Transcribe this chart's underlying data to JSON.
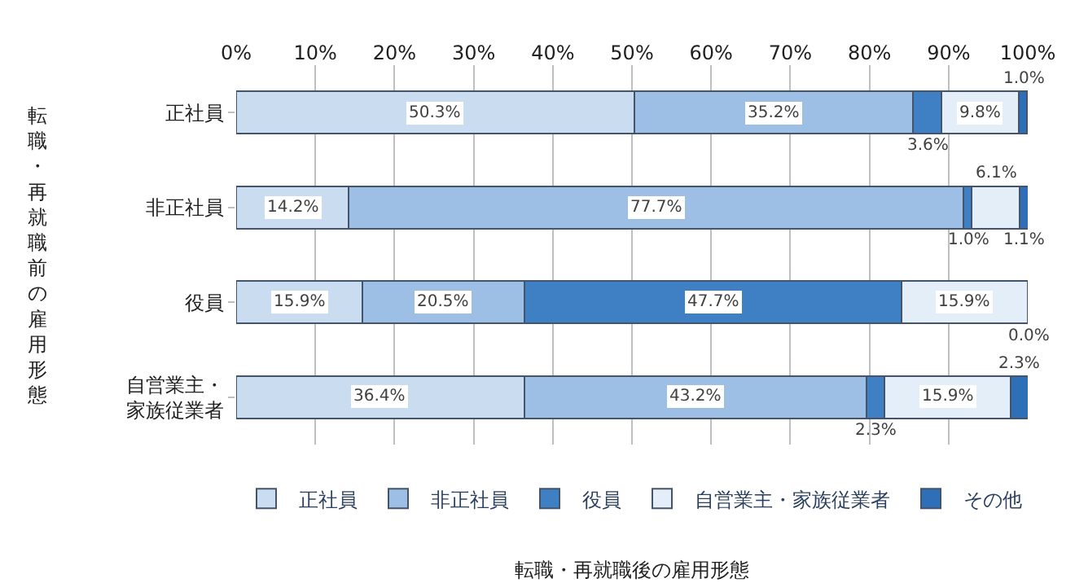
{
  "chart_data": {
    "type": "bar",
    "orientation": "horizontal",
    "stacked": true,
    "ylabel": "転職・再就職前の雇用形態",
    "annotations": [
      "転職・再就職後の雇用形態"
    ],
    "categories": [
      "正社員",
      "非正社員",
      "役員",
      "自営業主・家族従業者"
    ],
    "series": [
      {
        "name": "正社員",
        "color": "#c9dcf0",
        "values": [
          50.3,
          14.2,
          15.9,
          36.4
        ],
        "value_labels": [
          "50.3%",
          "14.2%",
          "15.9%",
          "36.4%"
        ]
      },
      {
        "name": "非正社員",
        "color": "#9dbfe6",
        "values": [
          35.2,
          77.7,
          20.5,
          43.2
        ],
        "value_labels": [
          "35.2%",
          "77.7%",
          "20.5%",
          "43.2%"
        ]
      },
      {
        "name": "役員",
        "color": "#3f7fc4",
        "values": [
          3.6,
          1.0,
          47.7,
          2.3
        ],
        "value_labels": [
          "3.6%",
          "1.0%",
          "47.7%",
          "2.3%"
        ]
      },
      {
        "name": "自営業主・家族従業者",
        "color": "#e4eef8",
        "values": [
          9.8,
          6.1,
          15.9,
          15.9
        ],
        "value_labels": [
          "9.8%",
          "6.1%",
          "15.9%",
          "15.9%"
        ]
      },
      {
        "name": "その他",
        "color": "#2f6fb8",
        "values": [
          1.0,
          1.1,
          0.0,
          2.3
        ],
        "value_labels": [
          "1.0%",
          "1.1%",
          "0.0%",
          "2.3%"
        ]
      }
    ],
    "xlim": [
      0,
      100
    ],
    "xticks": [
      {
        "value": 0,
        "label": "0%"
      },
      {
        "value": 10,
        "label": "10%"
      },
      {
        "value": 20,
        "label": "20%"
      },
      {
        "value": 30,
        "label": "30%"
      },
      {
        "value": 40,
        "label": "40%"
      },
      {
        "value": 50,
        "label": "50%"
      },
      {
        "value": 60,
        "label": "60%"
      },
      {
        "value": 70,
        "label": "70%"
      },
      {
        "value": 80,
        "label": "80%"
      },
      {
        "value": 90,
        "label": "90%"
      },
      {
        "value": 100,
        "label": "100%"
      }
    ],
    "grid": "x",
    "legend": "bottom"
  }
}
